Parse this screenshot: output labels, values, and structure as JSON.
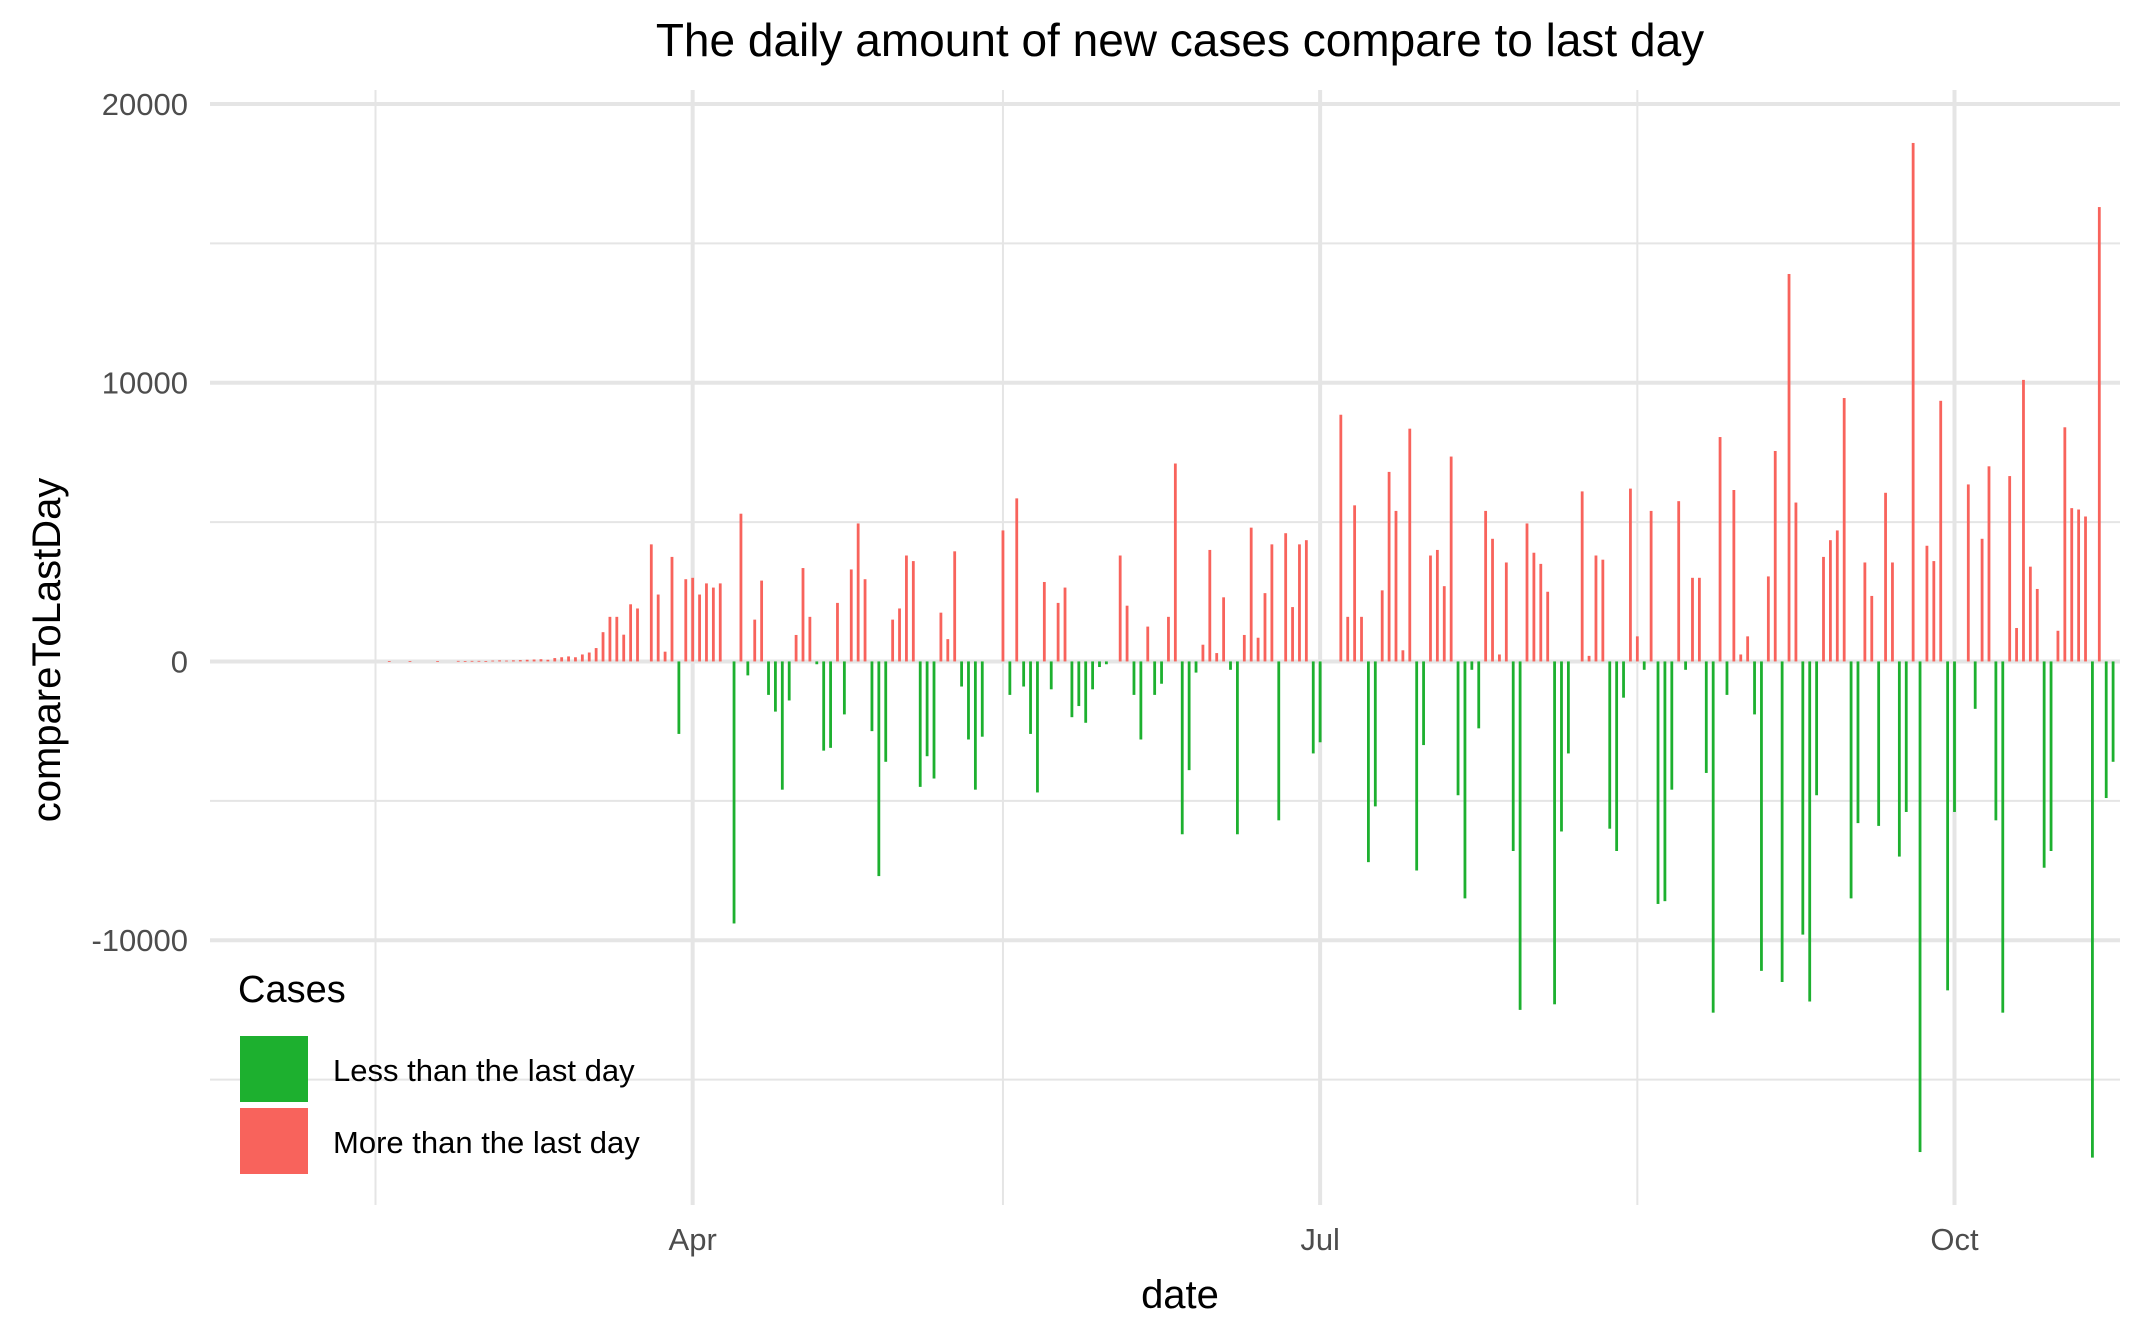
{
  "chart_data": {
    "type": "bar",
    "title": "The daily amount of new cases compare to last day",
    "xlabel": "date",
    "ylabel": "compareToLastDay",
    "x_axis": {
      "start_date": "2020-01-22",
      "end_date": "2020-10-25",
      "ticks": [
        {
          "date": "2020-04-01",
          "label": "Apr"
        },
        {
          "date": "2020-07-01",
          "label": "Jul"
        },
        {
          "date": "2020-10-01",
          "label": "Oct"
        }
      ],
      "minor_gridlines": [
        "2020-02-15",
        "2020-05-16",
        "2020-08-16"
      ]
    },
    "y_axis": {
      "ylim": [
        -19500,
        20500
      ],
      "ticks": [
        20000,
        10000,
        0,
        -10000
      ],
      "minor_gridlines": [
        15000,
        5000,
        -5000,
        -15000
      ]
    },
    "grid": true,
    "legend": {
      "title": "Cases",
      "position": "bottom-left",
      "items": [
        {
          "key": "less",
          "label": "Less than the last day",
          "color": "#1DB02F"
        },
        {
          "key": "more",
          "label": "More than the last day",
          "color": "#F8635C"
        }
      ]
    },
    "colors": {
      "positive": "#F8635C",
      "negative": "#1DB02F",
      "grid": "#E5E5E5"
    },
    "series": [
      {
        "name": "compareToLastDay",
        "start_date": "2020-02-16",
        "values": [
          0,
          10,
          0,
          0,
          10,
          0,
          0,
          0,
          10,
          0,
          0,
          20,
          10,
          20,
          20,
          10,
          30,
          40,
          30,
          40,
          50,
          60,
          70,
          80,
          60,
          120,
          150,
          180,
          150,
          250,
          320,
          480,
          1050,
          1600,
          1600,
          960,
          2050,
          1900,
          0,
          4200,
          2400,
          350,
          3750,
          -2600,
          2950,
          3000,
          2400,
          2800,
          2650,
          2800,
          0,
          -9400,
          5300,
          -500,
          1500,
          2900,
          -1200,
          -1800,
          -4600,
          -1400,
          950,
          3350,
          1600,
          -100,
          -3200,
          -3100,
          2100,
          -1900,
          3300,
          4950,
          2950,
          -2500,
          -7700,
          -3600,
          1500,
          1900,
          3800,
          3600,
          -4500,
          -3400,
          -4200,
          1750,
          800,
          3950,
          -900,
          -2800,
          -4600,
          -2700,
          0,
          0,
          4700,
          -1200,
          5850,
          -900,
          -2600,
          -4700,
          2850,
          -1000,
          2100,
          2650,
          -2000,
          -1600,
          -2200,
          -1000,
          -200,
          -100,
          0,
          3800,
          2000,
          -1200,
          -2800,
          1250,
          -1200,
          -800,
          1600,
          7100,
          -6200,
          -3900,
          -400,
          600,
          4000,
          300,
          2300,
          -300,
          -6200,
          950,
          4800,
          850,
          2450,
          4200,
          -5700,
          4600,
          1950,
          4200,
          4350,
          -3300,
          -2900,
          0,
          0,
          8850,
          1600,
          5600,
          1600,
          -7200,
          -5200,
          2550,
          6800,
          5400,
          400,
          8350,
          -7500,
          -3000,
          3800,
          4000,
          2700,
          7350,
          -4800,
          -8500,
          -300,
          -2400,
          5400,
          4400,
          250,
          3550,
          -6800,
          -12500,
          4950,
          3900,
          3500,
          2500,
          -12300,
          -6100,
          -3300,
          0,
          6100,
          200,
          3800,
          3650,
          -6000,
          -6800,
          -1300,
          6200,
          900,
          -300,
          5400,
          -8700,
          -8600,
          -4600,
          5750,
          -300,
          3000,
          3000,
          -4000,
          -12600,
          8050,
          -1200,
          6150,
          250,
          900,
          -1900,
          -11100,
          3050,
          7550,
          -11500,
          13900,
          5700,
          -9800,
          -12200,
          -4800,
          3750,
          4350,
          4700,
          9450,
          -8500,
          -5800,
          3550,
          2350,
          -5900,
          6050,
          3550,
          -7000,
          -5400,
          18600,
          -17600,
          4150,
          3600,
          9350,
          -11800,
          -5400,
          0,
          6350,
          -1700,
          4400,
          7000,
          -5700,
          -12600,
          6650,
          1200,
          10100,
          3400,
          2600,
          -7400,
          -6800,
          1100,
          8400,
          5500,
          5450,
          5200,
          -17800,
          16300,
          -4900,
          -3600
        ]
      }
    ]
  }
}
